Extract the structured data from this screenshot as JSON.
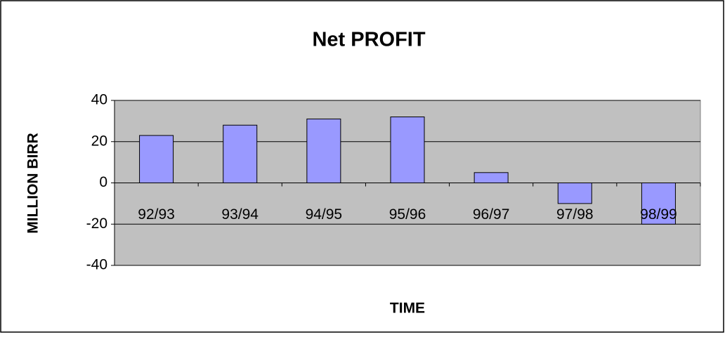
{
  "chart_data": {
    "type": "bar",
    "title": "Net PROFIT",
    "xlabel": "TIME",
    "ylabel": "MILLION BIRR",
    "categories": [
      "92/93",
      "93/94",
      "94/95",
      "95/96",
      "96/97",
      "97/98",
      "98/99"
    ],
    "values": [
      23,
      28,
      31,
      32,
      5,
      -10,
      -20
    ],
    "color": "#9999ff",
    "ylim": [
      -40,
      40
    ],
    "yticks": [
      -40,
      -20,
      0,
      20,
      40
    ],
    "grid": true
  }
}
